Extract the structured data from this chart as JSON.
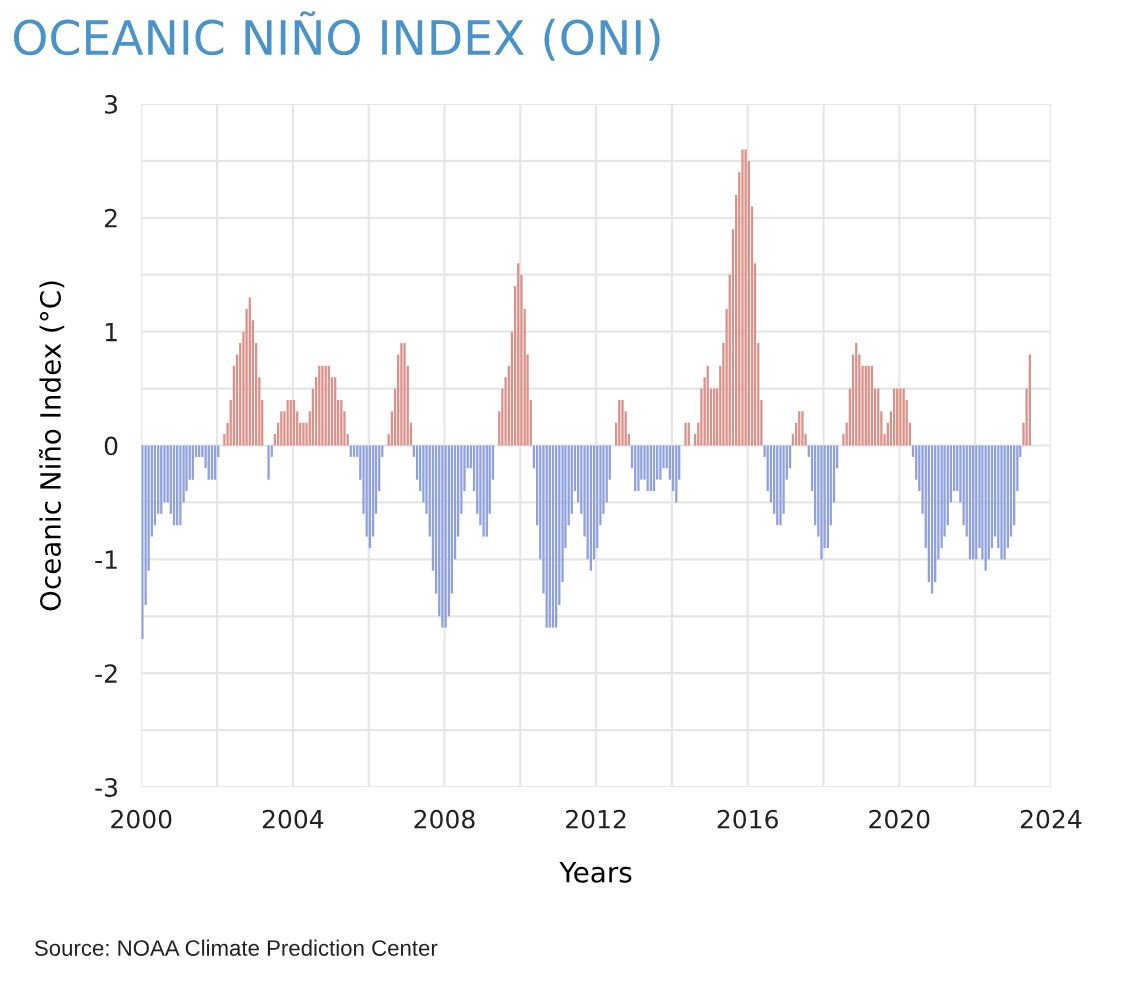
{
  "chart_data": {
    "type": "bar",
    "title": "OCEANIC NIÑO INDEX (ONI)",
    "xlabel": "Years",
    "ylabel": "Oceanic Niño Index (°C)",
    "annotations": [
      "Source: NOAA Climate Prediction Center"
    ],
    "x": [
      "2000-01",
      "2000-02",
      "2000-03",
      "2000-04",
      "2000-05",
      "2000-06",
      "2000-07",
      "2000-08",
      "2000-09",
      "2000-10",
      "2000-11",
      "2000-12",
      "2001-01",
      "2001-02",
      "2001-03",
      "2001-04",
      "2001-05",
      "2001-06",
      "2001-07",
      "2001-08",
      "2001-09",
      "2001-10",
      "2001-11",
      "2001-12",
      "2002-01",
      "2002-02",
      "2002-03",
      "2002-04",
      "2002-05",
      "2002-06",
      "2002-07",
      "2002-08",
      "2002-09",
      "2002-10",
      "2002-11",
      "2002-12",
      "2003-01",
      "2003-02",
      "2003-03",
      "2003-04",
      "2003-05",
      "2003-06",
      "2003-07",
      "2003-08",
      "2003-09",
      "2003-10",
      "2003-11",
      "2003-12",
      "2004-01",
      "2004-02",
      "2004-03",
      "2004-04",
      "2004-05",
      "2004-06",
      "2004-07",
      "2004-08",
      "2004-09",
      "2004-10",
      "2004-11",
      "2004-12",
      "2005-01",
      "2005-02",
      "2005-03",
      "2005-04",
      "2005-05",
      "2005-06",
      "2005-07",
      "2005-08",
      "2005-09",
      "2005-10",
      "2005-11",
      "2005-12",
      "2006-01",
      "2006-02",
      "2006-03",
      "2006-04",
      "2006-05",
      "2006-06",
      "2006-07",
      "2006-08",
      "2006-09",
      "2006-10",
      "2006-11",
      "2006-12",
      "2007-01",
      "2007-02",
      "2007-03",
      "2007-04",
      "2007-05",
      "2007-06",
      "2007-07",
      "2007-08",
      "2007-09",
      "2007-10",
      "2007-11",
      "2007-12",
      "2008-01",
      "2008-02",
      "2008-03",
      "2008-04",
      "2008-05",
      "2008-06",
      "2008-07",
      "2008-08",
      "2008-09",
      "2008-10",
      "2008-11",
      "2008-12",
      "2009-01",
      "2009-02",
      "2009-03",
      "2009-04",
      "2009-05",
      "2009-06",
      "2009-07",
      "2009-08",
      "2009-09",
      "2009-10",
      "2009-11",
      "2009-12",
      "2010-01",
      "2010-02",
      "2010-03",
      "2010-04",
      "2010-05",
      "2010-06",
      "2010-07",
      "2010-08",
      "2010-09",
      "2010-10",
      "2010-11",
      "2010-12",
      "2011-01",
      "2011-02",
      "2011-03",
      "2011-04",
      "2011-05",
      "2011-06",
      "2011-07",
      "2011-08",
      "2011-09",
      "2011-10",
      "2011-11",
      "2011-12",
      "2012-01",
      "2012-02",
      "2012-03",
      "2012-04",
      "2012-05",
      "2012-06",
      "2012-07",
      "2012-08",
      "2012-09",
      "2012-10",
      "2012-11",
      "2012-12",
      "2013-01",
      "2013-02",
      "2013-03",
      "2013-04",
      "2013-05",
      "2013-06",
      "2013-07",
      "2013-08",
      "2013-09",
      "2013-10",
      "2013-11",
      "2013-12",
      "2014-01",
      "2014-02",
      "2014-03",
      "2014-04",
      "2014-05",
      "2014-06",
      "2014-07",
      "2014-08",
      "2014-09",
      "2014-10",
      "2014-11",
      "2014-12",
      "2015-01",
      "2015-02",
      "2015-03",
      "2015-04",
      "2015-05",
      "2015-06",
      "2015-07",
      "2015-08",
      "2015-09",
      "2015-10",
      "2015-11",
      "2015-12",
      "2016-01",
      "2016-02",
      "2016-03",
      "2016-04",
      "2016-05",
      "2016-06",
      "2016-07",
      "2016-08",
      "2016-09",
      "2016-10",
      "2016-11",
      "2016-12",
      "2017-01",
      "2017-02",
      "2017-03",
      "2017-04",
      "2017-05",
      "2017-06",
      "2017-07",
      "2017-08",
      "2017-09",
      "2017-10",
      "2017-11",
      "2017-12",
      "2018-01",
      "2018-02",
      "2018-03",
      "2018-04",
      "2018-05",
      "2018-06",
      "2018-07",
      "2018-08",
      "2018-09",
      "2018-10",
      "2018-11",
      "2018-12",
      "2019-01",
      "2019-02",
      "2019-03",
      "2019-04",
      "2019-05",
      "2019-06",
      "2019-07",
      "2019-08",
      "2019-09",
      "2019-10",
      "2019-11",
      "2019-12",
      "2020-01",
      "2020-02",
      "2020-03",
      "2020-04",
      "2020-05",
      "2020-06",
      "2020-07",
      "2020-08",
      "2020-09",
      "2020-10",
      "2020-11",
      "2020-12",
      "2021-01",
      "2021-02",
      "2021-03",
      "2021-04",
      "2021-05",
      "2021-06",
      "2021-07",
      "2021-08",
      "2021-09",
      "2021-10",
      "2021-11",
      "2021-12",
      "2022-01",
      "2022-02",
      "2022-03",
      "2022-04",
      "2022-05",
      "2022-06",
      "2022-07",
      "2022-08",
      "2022-09",
      "2022-10",
      "2022-11",
      "2022-12",
      "2023-01",
      "2023-02",
      "2023-03",
      "2023-04",
      "2023-05",
      "2023-06"
    ],
    "series": [
      {
        "color": "#d99189",
        "values": [
          null,
          null,
          null,
          null,
          null,
          null,
          null,
          null,
          null,
          null,
          null,
          null,
          null,
          null,
          null,
          null,
          null,
          null,
          null,
          null,
          null,
          null,
          null,
          null,
          null,
          null,
          0.1,
          0.2,
          0.4,
          0.7,
          0.8,
          0.9,
          1.0,
          1.2,
          1.3,
          1.1,
          0.9,
          0.6,
          0.4,
          null,
          null,
          null,
          0.1,
          0.2,
          0.3,
          0.3,
          0.4,
          0.4,
          0.4,
          0.3,
          0.2,
          0.2,
          0.2,
          0.3,
          0.5,
          0.6,
          0.7,
          0.7,
          0.7,
          0.7,
          0.6,
          0.6,
          0.4,
          0.4,
          0.3,
          0.1,
          null,
          null,
          null,
          null,
          null,
          null,
          null,
          null,
          null,
          null,
          null,
          null,
          0.1,
          0.3,
          0.5,
          0.8,
          0.9,
          0.9,
          0.7,
          0.2,
          null,
          null,
          null,
          null,
          null,
          null,
          null,
          null,
          null,
          null,
          null,
          null,
          null,
          null,
          null,
          null,
          null,
          null,
          null,
          null,
          null,
          null,
          null,
          null,
          null,
          null,
          null,
          0.3,
          0.5,
          0.6,
          0.7,
          1.0,
          1.4,
          1.6,
          1.5,
          1.2,
          0.8,
          0.4,
          null,
          null,
          null,
          null,
          null,
          null,
          null,
          null,
          null,
          null,
          null,
          null,
          null,
          null,
          null,
          null,
          null,
          null,
          null,
          null,
          null,
          null,
          null,
          null,
          null,
          null,
          0.2,
          0.4,
          0.4,
          0.3,
          0.1,
          null,
          null,
          null,
          null,
          null,
          null,
          null,
          null,
          null,
          null,
          null,
          null,
          null,
          null,
          null,
          null,
          null,
          0.2,
          0.2,
          null,
          0.1,
          0.2,
          0.5,
          0.6,
          0.7,
          0.5,
          0.5,
          0.5,
          0.7,
          0.9,
          1.2,
          1.5,
          1.9,
          2.2,
          2.4,
          2.6,
          2.6,
          2.5,
          2.1,
          1.6,
          0.9,
          0.4,
          null,
          null,
          null,
          null,
          null,
          null,
          null,
          null,
          null,
          0.1,
          0.2,
          0.3,
          0.3,
          0.1,
          null,
          null,
          null,
          null,
          null,
          null,
          null,
          null,
          null,
          null,
          null,
          0.1,
          0.2,
          0.5,
          0.8,
          0.9,
          0.8,
          0.7,
          0.7,
          0.7,
          0.7,
          0.5,
          0.5,
          0.3,
          0.1,
          0.2,
          0.3,
          0.5,
          0.5,
          0.5,
          0.5,
          0.4,
          0.2,
          null,
          null,
          null,
          null,
          null,
          null,
          null,
          null,
          null,
          null,
          null,
          null,
          null,
          null,
          null,
          null,
          null,
          null,
          null,
          null,
          null,
          null,
          null,
          null,
          null,
          null,
          null,
          null,
          null,
          null,
          null,
          null,
          null,
          null,
          null,
          0.2,
          0.5,
          0.8
        ]
      },
      {
        "color": "#8fa1dc",
        "values": [
          -1.7,
          -1.4,
          -1.1,
          -0.8,
          -0.7,
          -0.6,
          -0.6,
          -0.5,
          -0.5,
          -0.6,
          -0.7,
          -0.7,
          -0.7,
          -0.5,
          -0.4,
          -0.3,
          -0.3,
          -0.1,
          -0.1,
          -0.1,
          -0.2,
          -0.3,
          -0.3,
          -0.3,
          -0.1,
          0.0,
          null,
          null,
          null,
          null,
          null,
          null,
          null,
          null,
          null,
          null,
          null,
          null,
          null,
          0.0,
          -0.3,
          -0.1,
          null,
          null,
          null,
          null,
          null,
          null,
          null,
          null,
          null,
          null,
          null,
          null,
          null,
          null,
          null,
          null,
          null,
          null,
          null,
          null,
          null,
          null,
          null,
          null,
          -0.1,
          -0.1,
          -0.1,
          -0.3,
          -0.6,
          -0.8,
          -0.9,
          -0.8,
          -0.6,
          -0.4,
          -0.1,
          0.0,
          null,
          null,
          null,
          null,
          null,
          null,
          null,
          null,
          -0.1,
          -0.3,
          -0.4,
          -0.5,
          -0.6,
          -0.8,
          -1.1,
          -1.3,
          -1.5,
          -1.6,
          -1.6,
          -1.5,
          -1.3,
          -1.0,
          -0.8,
          -0.6,
          -0.4,
          -0.2,
          -0.2,
          -0.4,
          -0.6,
          -0.7,
          -0.8,
          -0.8,
          -0.6,
          -0.3,
          0.0,
          null,
          null,
          null,
          null,
          null,
          null,
          null,
          null,
          null,
          null,
          null,
          -0.2,
          -0.7,
          -1.0,
          -1.3,
          -1.6,
          -1.6,
          -1.6,
          -1.6,
          -1.4,
          -1.2,
          -0.9,
          -0.7,
          -0.6,
          -0.4,
          -0.5,
          -0.6,
          -0.8,
          -1.0,
          -1.1,
          -1.0,
          -0.9,
          -0.7,
          -0.6,
          -0.5,
          -0.3,
          0.0,
          null,
          null,
          null,
          null,
          null,
          -0.2,
          -0.4,
          -0.4,
          -0.3,
          -0.3,
          -0.4,
          -0.4,
          -0.4,
          -0.3,
          -0.3,
          -0.2,
          -0.2,
          -0.3,
          -0.4,
          -0.5,
          -0.3,
          0.0,
          null,
          null,
          0.0,
          null,
          null,
          null,
          null,
          null,
          null,
          null,
          null,
          null,
          null,
          null,
          null,
          null,
          null,
          null,
          null,
          null,
          null,
          null,
          null,
          null,
          null,
          -0.1,
          -0.4,
          -0.5,
          -0.6,
          -0.7,
          -0.7,
          -0.6,
          -0.3,
          -0.2,
          null,
          null,
          null,
          null,
          null,
          -0.1,
          -0.4,
          -0.7,
          -0.8,
          -1.0,
          -0.9,
          -0.9,
          -0.7,
          -0.5,
          -0.2,
          0.0,
          null,
          null,
          null,
          null,
          null,
          null,
          null,
          null,
          null,
          null,
          null,
          null,
          null,
          null,
          null,
          null,
          null,
          null,
          null,
          null,
          null,
          null,
          -0.1,
          -0.3,
          -0.4,
          -0.6,
          -0.9,
          -1.2,
          -1.3,
          -1.2,
          -1.0,
          -0.9,
          -0.8,
          -0.7,
          -0.5,
          -0.4,
          -0.4,
          -0.5,
          -0.7,
          -0.8,
          -1.0,
          -1.0,
          -1.0,
          -0.9,
          -1.0,
          -1.1,
          -1.0,
          -0.9,
          -0.8,
          -0.9,
          -1.0,
          -1.0,
          -0.9,
          -0.8,
          -0.7,
          -0.4,
          -0.1,
          null,
          null,
          null
        ]
      }
    ],
    "xlim": [
      "2000",
      "2024"
    ],
    "xticks": [
      "2000",
      {
        "value": "2002",
        "label": null
      },
      "2004",
      {
        "value": "2006",
        "label": null
      },
      "2008",
      {
        "value": "2010",
        "label": null
      },
      "2012",
      {
        "value": "2014",
        "label": null
      },
      "2016",
      {
        "value": "2018",
        "label": null
      },
      "2020",
      {
        "value": "2022",
        "label": null
      },
      "2024"
    ],
    "ylim": [
      -3,
      3
    ],
    "yticks": [
      -3,
      {
        "value": -2.5,
        "label": null
      },
      -2,
      {
        "value": -1.5,
        "label": null
      },
      -1,
      {
        "value": -0.5,
        "label": null
      },
      0,
      {
        "value": 0.5,
        "label": null
      },
      1,
      {
        "value": 1.5,
        "label": null
      },
      2,
      {
        "value": 2.5,
        "label": null
      },
      3
    ],
    "grid": true
  }
}
